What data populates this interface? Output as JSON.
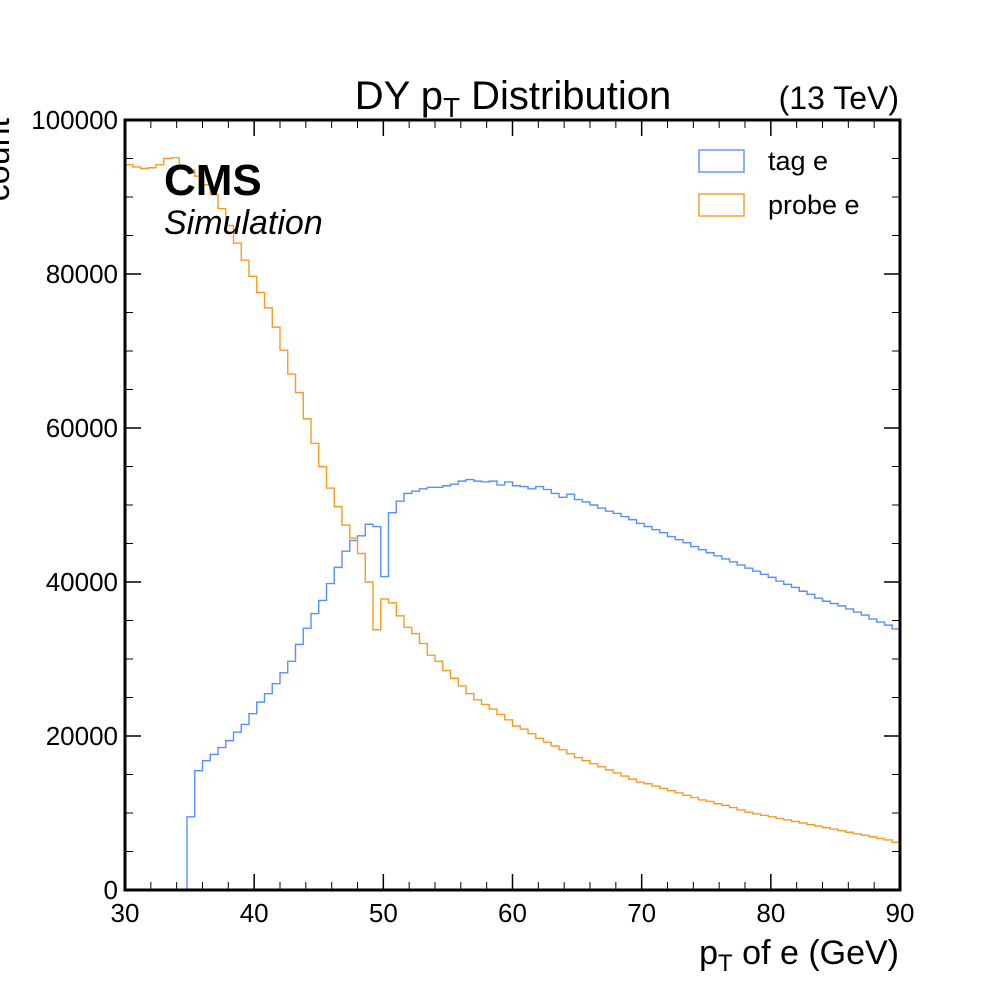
{
  "chart_data": {
    "type": "line",
    "step": true,
    "title": {
      "base": "DY p",
      "sub": "T",
      "rest": " Distribution"
    },
    "energy_label": "(13 TeV)",
    "experiment": "CMS",
    "experiment_tag": "Simulation",
    "xlabel": {
      "base": "p",
      "sub": "T",
      "rest": " of e (GeV)"
    },
    "ylabel": "count",
    "xlim": [
      30,
      90
    ],
    "ylim": [
      0,
      100000
    ],
    "x_ticks": [
      "30",
      "40",
      "50",
      "60",
      "70",
      "80",
      "90"
    ],
    "y_ticks": [
      "0",
      "20000",
      "40000",
      "60000",
      "80000",
      "100000"
    ],
    "legend": {
      "position": "top-right"
    },
    "bin_edges_start": 30,
    "bin_width": 0.6,
    "series": [
      {
        "name": "tag e",
        "color": "#5790fc",
        "values": [
          0,
          0,
          0,
          0,
          0,
          0,
          0,
          0,
          9500,
          15500,
          16800,
          17600,
          18500,
          19400,
          20500,
          21500,
          22900,
          24400,
          25500,
          26800,
          28200,
          29700,
          31900,
          34000,
          35900,
          37600,
          39800,
          41900,
          44000,
          45400,
          46000,
          47500,
          47200,
          40700,
          49000,
          50500,
          51500,
          51800,
          52100,
          52300,
          52300,
          52500,
          52700,
          53100,
          53300,
          53100,
          53000,
          53100,
          52600,
          53000,
          52500,
          52400,
          52100,
          52400,
          52000,
          51500,
          51000,
          51400,
          50700,
          50400,
          50000,
          49600,
          49200,
          48900,
          48500,
          48100,
          47600,
          47200,
          46800,
          46400,
          45900,
          45500,
          45100,
          44600,
          44200,
          43800,
          43400,
          43000,
          42600,
          42200,
          41800,
          41400,
          41000,
          40600,
          40100,
          39700,
          39300,
          38800,
          38400,
          37900,
          37500,
          37200,
          36900,
          36500,
          36100,
          35700,
          35200,
          34800,
          34400,
          33900
        ]
      },
      {
        "name": "probe e",
        "color": "#f89c20",
        "values": [
          94200,
          93900,
          93700,
          93800,
          94200,
          95000,
          95100,
          93800,
          93500,
          92700,
          91600,
          90300,
          88500,
          86300,
          84000,
          81800,
          79700,
          77600,
          75600,
          73100,
          70100,
          67000,
          64600,
          61200,
          58000,
          55000,
          52200,
          49800,
          47400,
          45700,
          43700,
          40000,
          33800,
          37800,
          37300,
          35600,
          34100,
          33300,
          32000,
          30500,
          29700,
          28500,
          27500,
          26500,
          25500,
          24700,
          24100,
          23500,
          22800,
          22100,
          21300,
          20900,
          20300,
          19700,
          19200,
          18700,
          18200,
          17700,
          17200,
          16800,
          16400,
          16000,
          15600,
          15200,
          14800,
          14400,
          14000,
          13800,
          13500,
          13200,
          12900,
          12600,
          12300,
          12000,
          11700,
          11500,
          11200,
          11000,
          10700,
          10400,
          10100,
          9900,
          9700,
          9500,
          9300,
          9100,
          8900,
          8700,
          8500,
          8300,
          8100,
          7900,
          7700,
          7500,
          7300,
          7100,
          6900,
          6700,
          6500,
          6200
        ]
      }
    ]
  }
}
